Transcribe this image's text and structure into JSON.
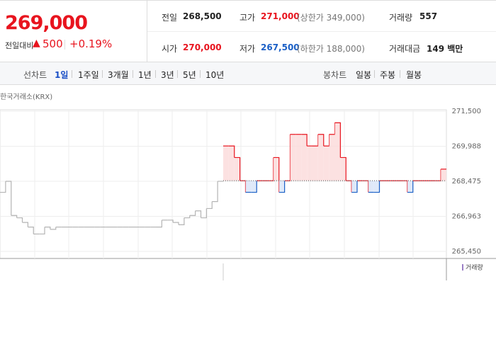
{
  "header": {
    "price": "269,000",
    "change_label": "전일대비",
    "change": "500",
    "change_rate": "+0.19%"
  },
  "stats": [
    [
      {
        "label": "전일",
        "value": "268,500"
      },
      {
        "label": "고가",
        "value": "271,000",
        "note": "(상한가 349,000)"
      },
      {
        "label": "거래량",
        "value": "557"
      }
    ],
    [
      {
        "label": "시가",
        "value": "270,000"
      },
      {
        "label": "저가",
        "value": "267,500",
        "note": "(하한가 188,000)"
      },
      {
        "label": "거래대금",
        "value": "149 백만"
      }
    ]
  ],
  "tabs": {
    "line_label": "선차트",
    "line": [
      "1일",
      "1주일",
      "3개월",
      "1년",
      "3년",
      "5년",
      "10년"
    ],
    "candle_label": "봉차트",
    "candle": [
      "일봉",
      "주봉",
      "월봉"
    ]
  },
  "chart_data": {
    "type": "line",
    "source": "한국거래소(KRX)",
    "volume_label": "거래량",
    "ylim": [
      265450,
      271500
    ],
    "yticks": [
      {
        "value": 271500,
        "label": "271,500"
      },
      {
        "value": 269988,
        "label": "269,988"
      },
      {
        "value": 268475,
        "label": "268,475"
      },
      {
        "value": 266963,
        "label": "266,963"
      },
      {
        "value": 265450,
        "label": "265,450"
      }
    ],
    "grid": true,
    "baseline": 268500,
    "series": [
      {
        "color": "#b4b4b4",
        "values": [
          268000,
          268475,
          267000,
          266900,
          266700,
          266500,
          266200,
          266200,
          266500,
          266400,
          266500,
          266500,
          266500,
          266500,
          266500,
          266500,
          266500,
          266500,
          266500,
          266500,
          266500,
          266500,
          266500,
          266500,
          266500,
          266500,
          266500,
          266500,
          266500,
          266800,
          266800,
          266700,
          266600,
          266900,
          267000,
          267200,
          266900,
          267300,
          267600,
          268475
        ]
      },
      {
        "color": "#e8141e",
        "down_color": "#1a5fc6",
        "values": [
          270000,
          270000,
          269500,
          268500,
          268000,
          268000,
          268500,
          268500,
          268500,
          269500,
          268000,
          268500,
          270500,
          270500,
          270500,
          270000,
          270000,
          270500,
          270000,
          270500,
          271000,
          269500,
          268500,
          268000,
          268500,
          268500,
          268000,
          268000,
          268500,
          268500,
          268500,
          268500,
          268500,
          268000,
          268500,
          268500,
          268500,
          268500,
          268500,
          269000
        ]
      }
    ]
  }
}
